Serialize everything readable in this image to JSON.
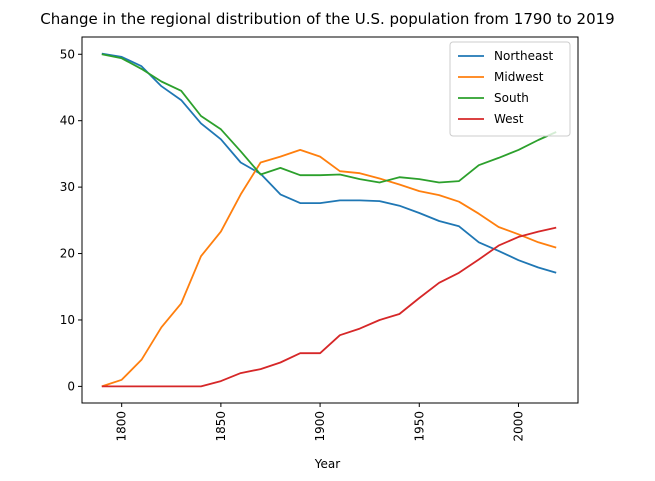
{
  "chart_data": {
    "type": "line",
    "title": "Change in the regional distribution of the U.S. population from 1790 to 2019",
    "xlabel": "Year",
    "ylabel": "",
    "xlim": [
      1780,
      2030
    ],
    "ylim": [
      -2.5,
      52.6
    ],
    "xticks": [
      1800,
      1850,
      1900,
      1950,
      2000
    ],
    "yticks": [
      0,
      10,
      20,
      30,
      40,
      50
    ],
    "grid": false,
    "legend_position": "top-right",
    "x": [
      1790,
      1800,
      1810,
      1820,
      1830,
      1840,
      1850,
      1860,
      1870,
      1880,
      1890,
      1900,
      1910,
      1920,
      1930,
      1940,
      1950,
      1960,
      1970,
      1980,
      1990,
      2000,
      2010,
      2019
    ],
    "series": [
      {
        "name": "Northeast",
        "color": "#1f77b4",
        "values": [
          50.1,
          49.6,
          48.2,
          45.2,
          43.1,
          39.6,
          37.2,
          33.7,
          32.0,
          28.9,
          27.6,
          27.6,
          28.0,
          28.0,
          27.9,
          27.2,
          26.1,
          24.9,
          24.1,
          21.7,
          20.4,
          19.0,
          17.9,
          17.1
        ]
      },
      {
        "name": "Midwest",
        "color": "#ff7f0e",
        "values": [
          0.0,
          1.0,
          4.0,
          8.9,
          12.5,
          19.6,
          23.3,
          28.9,
          33.7,
          34.6,
          35.6,
          34.6,
          32.4,
          32.1,
          31.3,
          30.4,
          29.4,
          28.8,
          27.8,
          26.0,
          24.0,
          22.9,
          21.7,
          20.9
        ]
      },
      {
        "name": "South",
        "color": "#2ca02c",
        "values": [
          50.0,
          49.4,
          47.8,
          45.9,
          44.5,
          40.7,
          38.7,
          35.4,
          31.9,
          32.9,
          31.8,
          31.8,
          31.9,
          31.2,
          30.7,
          31.5,
          31.2,
          30.7,
          30.9,
          33.3,
          34.4,
          35.6,
          37.1,
          38.3
        ]
      },
      {
        "name": "West",
        "color": "#d62728",
        "values": [
          0.0,
          0.0,
          0.0,
          0.0,
          0.0,
          0.0,
          0.8,
          2.0,
          2.6,
          3.6,
          5.0,
          5.0,
          7.7,
          8.7,
          10.0,
          10.9,
          13.3,
          15.6,
          17.1,
          19.1,
          21.2,
          22.5,
          23.3,
          23.9
        ]
      }
    ]
  }
}
